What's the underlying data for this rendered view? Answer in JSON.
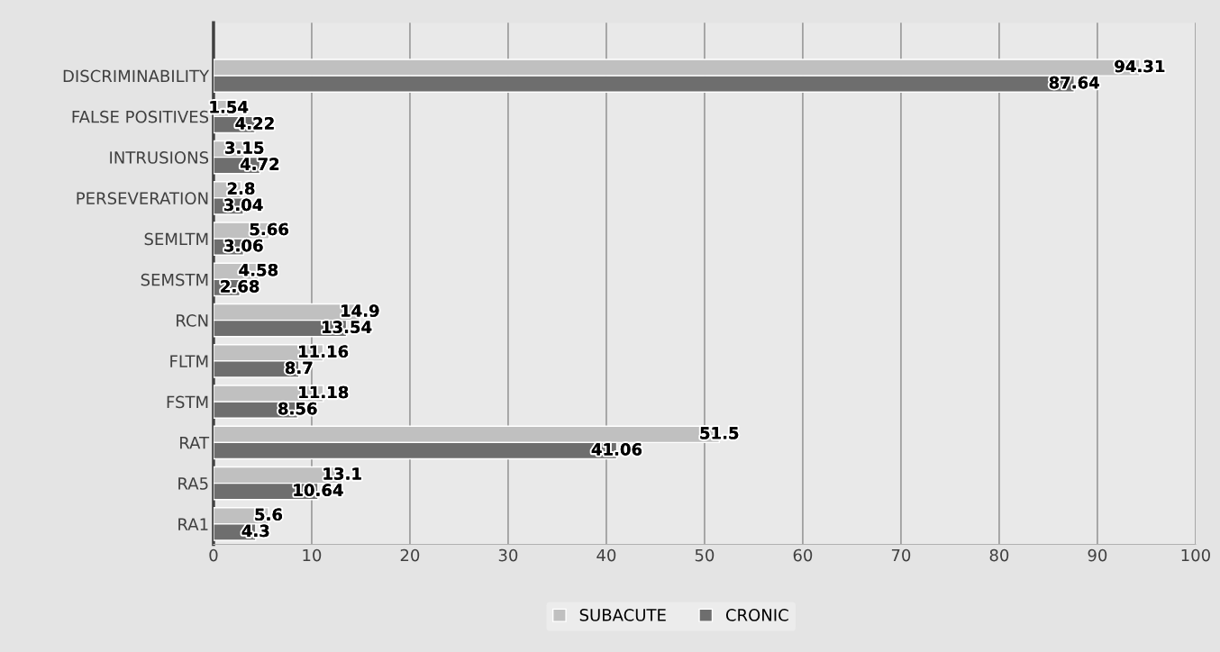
{
  "chart_data": {
    "type": "bar",
    "orientation": "horizontal",
    "categories": [
      "DISCRIMINABILITY",
      "FALSE POSITIVES",
      "INTRUSIONS",
      "PERSEVERATION",
      "SEMLTM",
      "SEMSTM",
      "RCN",
      "FLTM",
      "FSTM",
      "RAT",
      "RA5",
      "RA1"
    ],
    "series": [
      {
        "name": "SUBACUTE",
        "color": "#c0c0c0",
        "values": [
          94.31,
          1.54,
          3.15,
          2.8,
          5.66,
          4.58,
          14.9,
          11.16,
          11.18,
          51.5,
          13.1,
          5.6
        ]
      },
      {
        "name": "CRONIC",
        "color": "#6e6e6e",
        "values": [
          87.64,
          4.22,
          4.72,
          3.04,
          3.06,
          2.68,
          13.54,
          8.7,
          8.56,
          41.06,
          10.64,
          4.3
        ]
      }
    ],
    "xlim": [
      0,
      100
    ],
    "xticks": [
      0,
      10,
      20,
      30,
      40,
      50,
      60,
      70,
      80,
      90,
      100
    ],
    "grid": "x",
    "legend": "bottom",
    "data_labels": true
  }
}
